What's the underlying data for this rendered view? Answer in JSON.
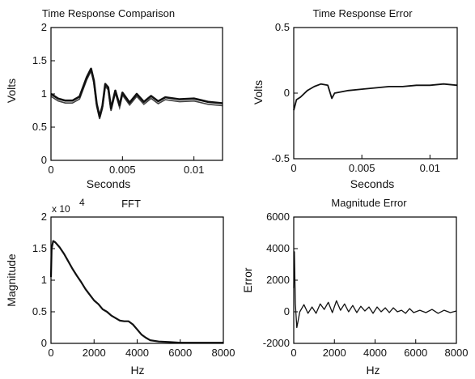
{
  "chart_data": [
    {
      "type": "line",
      "title": "Time Response Comparison",
      "xlabel": "Seconds",
      "ylabel": "Volts",
      "xlim": [
        0,
        0.012
      ],
      "ylim": [
        0,
        2
      ],
      "xticks": [
        0,
        0.005,
        0.01
      ],
      "xtick_labels": [
        "0",
        "0.005",
        "0.01"
      ],
      "yticks": [
        0,
        0.5,
        1,
        1.5,
        2
      ],
      "ytick_labels": [
        "0",
        "0.5",
        "1",
        "1.5",
        "2"
      ],
      "grid": false,
      "series": [
        {
          "style": "dense overlapping oscillating traces",
          "color": "#111111",
          "x": [
            0,
            0.0005,
            0.001,
            0.0015,
            0.002,
            0.0025,
            0.0028,
            0.003,
            0.0032,
            0.0034,
            0.0036,
            0.0038,
            0.004,
            0.0042,
            0.0045,
            0.0048,
            0.005,
            0.0055,
            0.006,
            0.0065,
            0.007,
            0.0075,
            0.008,
            0.009,
            0.01,
            0.011,
            0.012
          ],
          "y": [
            1.0,
            0.93,
            0.9,
            0.9,
            0.96,
            1.25,
            1.38,
            1.2,
            0.85,
            0.66,
            0.82,
            1.15,
            1.1,
            0.78,
            1.05,
            0.83,
            1.02,
            0.87,
            1.0,
            0.88,
            0.97,
            0.89,
            0.95,
            0.92,
            0.93,
            0.88,
            0.86
          ]
        }
      ]
    },
    {
      "type": "line",
      "title": "Time Response Error",
      "xlabel": "Seconds",
      "ylabel": "Volts",
      "xlim": [
        0,
        0.012
      ],
      "ylim": [
        -0.5,
        0.5
      ],
      "xticks": [
        0,
        0.005,
        0.01
      ],
      "xtick_labels": [
        "0",
        "0.005",
        "0.01"
      ],
      "yticks": [
        -0.5,
        0,
        0.5
      ],
      "ytick_labels": [
        "-0.5",
        "0",
        "0.5"
      ],
      "grid": false,
      "series": [
        {
          "style": "noisy trace",
          "color": "#111111",
          "x": [
            0,
            0.0002,
            0.0005,
            0.001,
            0.0015,
            0.002,
            0.0025,
            0.0028,
            0.003,
            0.0035,
            0.004,
            0.005,
            0.006,
            0.007,
            0.008,
            0.009,
            0.01,
            0.011,
            0.012
          ],
          "y": [
            -0.13,
            -0.05,
            -0.03,
            0.02,
            0.05,
            0.07,
            0.06,
            -0.04,
            0.0,
            0.01,
            0.02,
            0.03,
            0.04,
            0.05,
            0.05,
            0.06,
            0.06,
            0.07,
            0.06
          ]
        }
      ]
    },
    {
      "type": "line",
      "title": "FFT",
      "xlabel": "Hz",
      "ylabel": "Magnitude",
      "xlim": [
        0,
        8000
      ],
      "ylim": [
        0,
        2
      ],
      "y_multiplier_label": "x 10",
      "y_multiplier_exponent": "4",
      "xticks": [
        0,
        2000,
        4000,
        6000,
        8000
      ],
      "xtick_labels": [
        "0",
        "2000",
        "4000",
        "6000",
        "8000"
      ],
      "yticks": [
        0,
        0.5,
        1,
        1.5,
        2
      ],
      "ytick_labels": [
        "0",
        "0.5",
        "1",
        "1.5",
        "2"
      ],
      "grid": false,
      "series": [
        {
          "style": "two overlapping traces",
          "color": "#111111",
          "x": [
            0,
            30,
            100,
            200,
            400,
            600,
            800,
            1000,
            1200,
            1400,
            1600,
            1800,
            2000,
            2200,
            2400,
            2600,
            2800,
            3000,
            3200,
            3400,
            3600,
            3800,
            4000,
            4200,
            4400,
            4600,
            5000,
            5500,
            6000,
            7000,
            8000
          ],
          "y": [
            1.05,
            1.5,
            1.62,
            1.6,
            1.52,
            1.42,
            1.3,
            1.18,
            1.07,
            0.97,
            0.86,
            0.77,
            0.68,
            0.62,
            0.54,
            0.5,
            0.44,
            0.4,
            0.36,
            0.35,
            0.35,
            0.3,
            0.22,
            0.14,
            0.09,
            0.05,
            0.03,
            0.02,
            0.01,
            0.01,
            0.01
          ]
        }
      ]
    },
    {
      "type": "line",
      "title": "Magnitude Error",
      "xlabel": "Hz",
      "ylabel": "Error",
      "xlim": [
        0,
        8000
      ],
      "ylim": [
        -2000,
        6000
      ],
      "xticks": [
        0,
        2000,
        4000,
        6000,
        8000
      ],
      "xtick_labels": [
        "0",
        "2000",
        "4000",
        "6000",
        "8000"
      ],
      "yticks": [
        -2000,
        0,
        2000,
        4000,
        6000
      ],
      "ytick_labels": [
        "-2000",
        "0",
        "2000",
        "4000",
        "6000"
      ],
      "grid": false,
      "series": [
        {
          "style": "oscillating trace",
          "color": "#111111",
          "x": [
            0,
            30,
            80,
            150,
            300,
            500,
            700,
            900,
            1100,
            1300,
            1500,
            1700,
            1900,
            2100,
            2300,
            2500,
            2700,
            2900,
            3100,
            3300,
            3500,
            3700,
            3900,
            4100,
            4300,
            4500,
            4700,
            4900,
            5100,
            5300,
            5500,
            5700,
            5900,
            6200,
            6500,
            6800,
            7100,
            7400,
            7700,
            8000
          ],
          "y": [
            1500,
            3800,
            500,
            -1000,
            0,
            450,
            -100,
            300,
            -100,
            500,
            150,
            600,
            -50,
            700,
            100,
            500,
            0,
            400,
            -50,
            350,
            50,
            300,
            -100,
            300,
            0,
            250,
            -50,
            250,
            0,
            100,
            -100,
            200,
            -50,
            100,
            -50,
            150,
            -100,
            100,
            -50,
            50
          ]
        }
      ]
    }
  ]
}
